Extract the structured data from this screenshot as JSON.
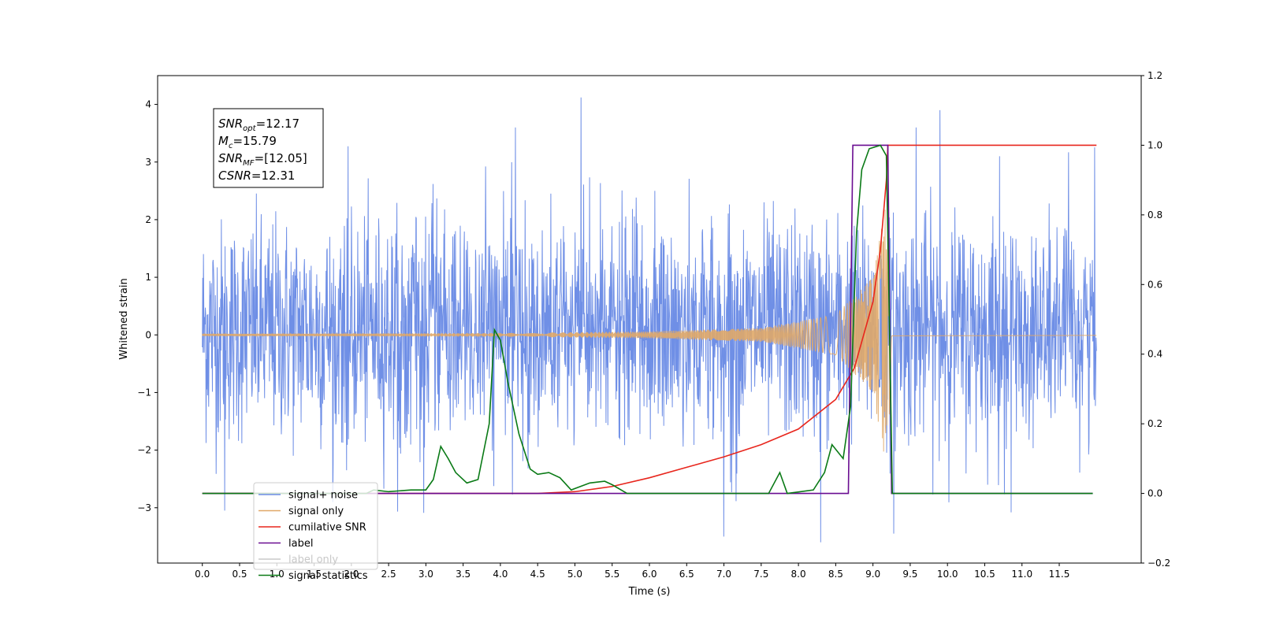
{
  "chart_data": {
    "type": "line",
    "xlabel": "Time (s)",
    "ylabel": "Whitened strain",
    "ylabel_right": "",
    "xlim": [
      -0.6,
      12.6
    ],
    "ylim": [
      -3.96,
      4.5
    ],
    "ylim_right": [
      -0.2,
      1.2
    ],
    "x_ticks": [
      0.0,
      0.5,
      1.0,
      1.5,
      2.0,
      2.5,
      3.0,
      3.5,
      4.0,
      4.5,
      5.0,
      5.5,
      6.0,
      6.5,
      7.0,
      7.5,
      8.0,
      8.5,
      9.0,
      9.5,
      10.0,
      10.5,
      11.0,
      11.5
    ],
    "x_tick_labels": [
      "0.0",
      "0.5",
      "1.0",
      "1.5",
      "2.0",
      "2.5",
      "3.0",
      "3.5",
      "4.0",
      "4.5",
      "5.0",
      "5.5",
      "6.0",
      "6.5",
      "7.0",
      "7.5",
      "8.0",
      "8.5",
      "9.0",
      "9.5",
      "10.0",
      "10.5",
      "11.0",
      "11.5"
    ],
    "y_ticks": [
      -3,
      -2,
      -1,
      0,
      1,
      2,
      3,
      4
    ],
    "y_tick_labels": [
      "−3",
      "−2",
      "−1",
      "0",
      "1",
      "2",
      "3",
      "4"
    ],
    "y_ticks_right": [
      -0.2,
      0.0,
      0.2,
      0.4,
      0.6,
      0.8,
      1.0,
      1.2
    ],
    "y_tick_labels_right": [
      "−0.2",
      "0.0",
      "0.2",
      "0.4",
      "0.6",
      "0.8",
      "1.0",
      "1.2"
    ],
    "grid": false,
    "legend_position": "lower-left",
    "annotation": {
      "lines": [
        {
          "name": "SNR",
          "sub": "opt",
          "value": "=12.17"
        },
        {
          "name": "M",
          "sub": "c",
          "value": "=15.79"
        },
        {
          "name": "SNR",
          "sub": "MF",
          "value": "=[12.05]"
        },
        {
          "name": "CSNR",
          "sub": "",
          "value": "=12.31"
        }
      ]
    },
    "series": [
      {
        "name": "signal+ noise",
        "color": "#6f8fe6",
        "axis": "left",
        "kind": "noise",
        "x_range": [
          0.0,
          12.0
        ],
        "envelope_typical": 2.0,
        "peaks": [
          {
            "x": 5.08,
            "y": 4.12
          },
          {
            "x": 9.9,
            "y": 3.9
          },
          {
            "x": 4.2,
            "y": 3.6
          },
          {
            "x": 9.58,
            "y": 3.6
          },
          {
            "x": 8.3,
            "y": -3.6
          },
          {
            "x": 7.0,
            "y": -3.5
          },
          {
            "x": 9.28,
            "y": -3.45
          },
          {
            "x": 0.3,
            "y": -3.05
          },
          {
            "x": 10.7,
            "y": 3.1
          }
        ]
      },
      {
        "name": "signal only",
        "color": "#e0a868",
        "axis": "left",
        "kind": "chirp",
        "x_range": [
          0.0,
          12.0
        ],
        "merger_time": 9.22,
        "amplitude_points": [
          [
            0.0,
            0.02
          ],
          [
            4.0,
            0.03
          ],
          [
            6.0,
            0.06
          ],
          [
            7.5,
            0.12
          ],
          [
            8.5,
            0.35
          ],
          [
            9.0,
            1.0
          ],
          [
            9.15,
            2.1
          ],
          [
            9.2,
            2.7
          ],
          [
            9.25,
            0.02
          ],
          [
            12.0,
            0.01
          ]
        ]
      },
      {
        "name": "cumilative SNR",
        "color": "#e8261d",
        "axis": "right",
        "points": [
          [
            0.0,
            0.0
          ],
          [
            4.5,
            0.0
          ],
          [
            5.0,
            0.005
          ],
          [
            5.5,
            0.02
          ],
          [
            6.0,
            0.045
          ],
          [
            6.5,
            0.075
          ],
          [
            7.0,
            0.105
          ],
          [
            7.5,
            0.14
          ],
          [
            8.0,
            0.185
          ],
          [
            8.5,
            0.27
          ],
          [
            8.75,
            0.36
          ],
          [
            9.0,
            0.55
          ],
          [
            9.1,
            0.7
          ],
          [
            9.18,
            0.9
          ],
          [
            9.2,
            1.0
          ],
          [
            12.0,
            1.0
          ]
        ]
      },
      {
        "name": "label",
        "color": "#6a0d91",
        "axis": "right",
        "points": [
          [
            0.0,
            0.0
          ],
          [
            8.67,
            0.0
          ],
          [
            8.73,
            1.0
          ],
          [
            9.2,
            1.0
          ],
          [
            9.25,
            0.0
          ],
          [
            11.95,
            0.0
          ]
        ]
      },
      {
        "name": "label only",
        "color": "#c8c8c8",
        "axis": "right",
        "legend_only": true,
        "points": []
      },
      {
        "name": "signal statistics",
        "color": "#0a7a16",
        "axis": "right",
        "points": [
          [
            0.0,
            0.0
          ],
          [
            2.2,
            0.0
          ],
          [
            2.3,
            0.01
          ],
          [
            2.5,
            0.005
          ],
          [
            2.8,
            0.01
          ],
          [
            3.0,
            0.01
          ],
          [
            3.1,
            0.04
          ],
          [
            3.2,
            0.135
          ],
          [
            3.3,
            0.1
          ],
          [
            3.4,
            0.06
          ],
          [
            3.55,
            0.03
          ],
          [
            3.7,
            0.04
          ],
          [
            3.85,
            0.2
          ],
          [
            3.92,
            0.47
          ],
          [
            4.0,
            0.44
          ],
          [
            4.1,
            0.32
          ],
          [
            4.25,
            0.17
          ],
          [
            4.4,
            0.07
          ],
          [
            4.5,
            0.055
          ],
          [
            4.65,
            0.06
          ],
          [
            4.8,
            0.045
          ],
          [
            4.95,
            0.01
          ],
          [
            5.2,
            0.03
          ],
          [
            5.4,
            0.035
          ],
          [
            5.5,
            0.025
          ],
          [
            5.7,
            0.0
          ],
          [
            6.0,
            0.0
          ],
          [
            7.6,
            0.0
          ],
          [
            7.75,
            0.06
          ],
          [
            7.85,
            0.0
          ],
          [
            8.2,
            0.01
          ],
          [
            8.35,
            0.06
          ],
          [
            8.45,
            0.14
          ],
          [
            8.6,
            0.1
          ],
          [
            8.7,
            0.25
          ],
          [
            8.78,
            0.75
          ],
          [
            8.85,
            0.93
          ],
          [
            8.95,
            0.99
          ],
          [
            9.1,
            1.0
          ],
          [
            9.18,
            0.97
          ],
          [
            9.22,
            0.5
          ],
          [
            9.26,
            0.0
          ],
          [
            11.95,
            0.0
          ]
        ]
      }
    ]
  }
}
